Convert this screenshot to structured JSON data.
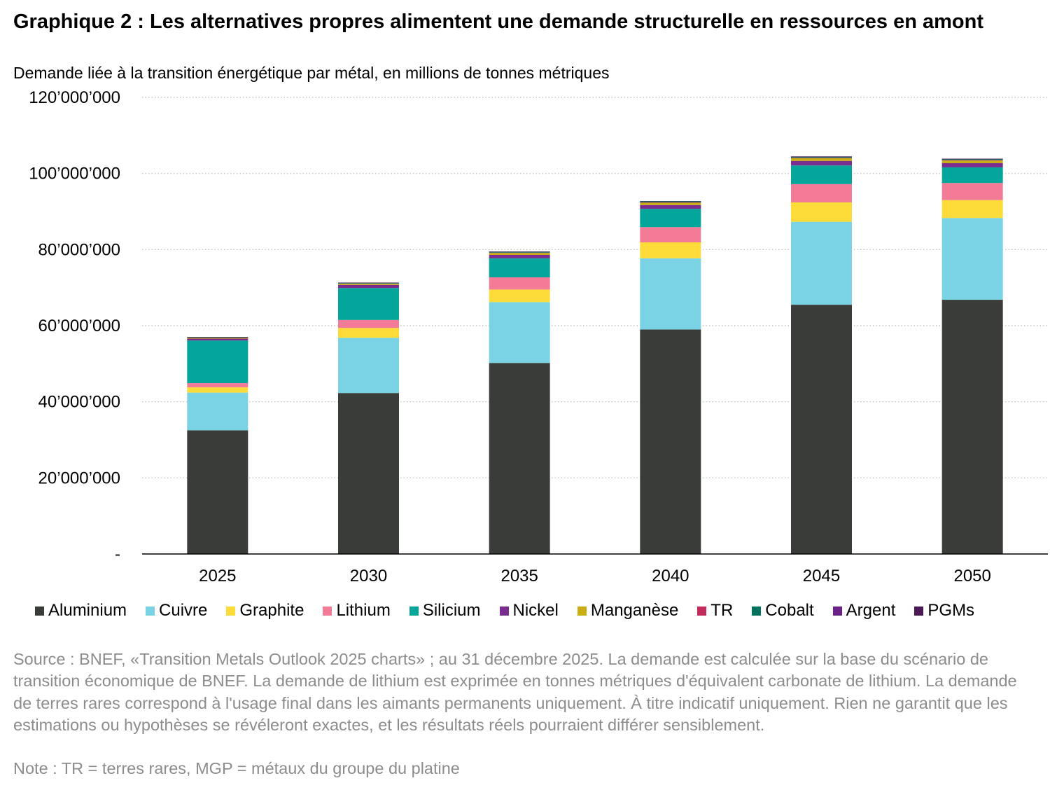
{
  "title": "Graphique 2 : Les alternatives propres alimentent une demande structurelle en ressources en amont",
  "subtitle": "Demande liée à la transition énergétique par métal, en millions de tonnes métriques",
  "source": "Source : BNEF, «Transition Metals Outlook 2025 charts» ; au 31 décembre 2025. La demande est calculée sur la base du scénario de transition économique de BNEF. La demande de lithium est exprimée en tonnes métriques d'équivalent carbonate de lithium. La demande de terres rares correspond à l'usage final dans les aimants permanents uniquement. À titre indicatif uniquement. Rien ne garantit que les estimations ou hypothèses se révéleront exactes, et les résultats réels pourraient différer sensiblement.",
  "note": "Note : TR = terres rares, MGP = métaux du groupe du platine",
  "chart_data": {
    "type": "bar",
    "stacked": true,
    "categories": [
      "2025",
      "2030",
      "2035",
      "2040",
      "2045",
      "2050"
    ],
    "ylim": [
      0,
      120000000
    ],
    "yticks": [
      0,
      20000000,
      40000000,
      60000000,
      80000000,
      100000000,
      120000000
    ],
    "ytick_labels": [
      "-",
      "20’000’000",
      "40’000’000",
      "60’000’000",
      "80’000’000",
      "100’000’000",
      "120’000’000"
    ],
    "grid": true,
    "legend_position": "bottom",
    "series": [
      {
        "name": "Aluminium",
        "color": "#3a3c39",
        "values": [
          32500000,
          42300000,
          50200000,
          59000000,
          65500000,
          66800000
        ]
      },
      {
        "name": "Cuivre",
        "color": "#7ad3e5",
        "values": [
          9900000,
          14500000,
          16000000,
          18700000,
          21800000,
          21500000
        ]
      },
      {
        "name": "Graphite",
        "color": "#fddc3a",
        "values": [
          1400000,
          2600000,
          3300000,
          4200000,
          5100000,
          4700000
        ]
      },
      {
        "name": "Lithium",
        "color": "#f37b98",
        "values": [
          1100000,
          2100000,
          3200000,
          4000000,
          4800000,
          4500000
        ]
      },
      {
        "name": "Silicium",
        "color": "#04a59a",
        "values": [
          11200000,
          8400000,
          5000000,
          4800000,
          4900000,
          4100000
        ]
      },
      {
        "name": "Nickel",
        "color": "#7b2d8f",
        "values": [
          500000,
          800000,
          900000,
          1000000,
          1200000,
          1100000
        ]
      },
      {
        "name": "Manganèse",
        "color": "#c9ad14",
        "values": [
          200000,
          300000,
          500000,
          600000,
          700000,
          700000
        ]
      },
      {
        "name": "TR",
        "color": "#c32b5b",
        "values": [
          50000,
          80000,
          100000,
          130000,
          150000,
          150000
        ]
      },
      {
        "name": "Cobalt",
        "color": "#00725f",
        "values": [
          150000,
          200000,
          230000,
          270000,
          280000,
          270000
        ]
      },
      {
        "name": "Argent",
        "color": "#6b2188",
        "values": [
          30000,
          30000,
          30000,
          30000,
          30000,
          30000
        ]
      },
      {
        "name": "PGMs",
        "color": "#4a1a56",
        "values": [
          20000,
          20000,
          20000,
          20000,
          20000,
          20000
        ]
      }
    ]
  }
}
